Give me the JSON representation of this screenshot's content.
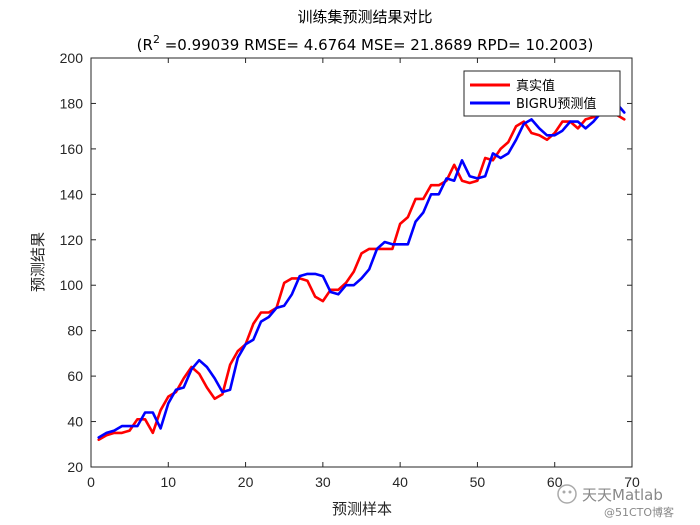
{
  "chart_data": {
    "type": "line",
    "title": "训练集预测结果对比",
    "subtitle_prefix": "(R",
    "subtitle_sup": "2",
    "subtitle_rest": " =0.99039 RMSE= 4.6764 MSE= 21.8689 RPD= 10.2003)",
    "xlabel": "预测样本",
    "ylabel": "预测结果",
    "xlim": [
      0,
      70
    ],
    "ylim": [
      20,
      200
    ],
    "xticks": [
      0,
      10,
      20,
      30,
      40,
      50,
      60,
      70
    ],
    "yticks": [
      20,
      40,
      60,
      80,
      100,
      120,
      140,
      160,
      180,
      200
    ],
    "grid": false,
    "legend_position": "top-right",
    "x": [
      1,
      2,
      3,
      4,
      5,
      6,
      7,
      8,
      9,
      10,
      11,
      12,
      13,
      14,
      15,
      16,
      17,
      18,
      19,
      20,
      21,
      22,
      23,
      24,
      25,
      26,
      27,
      28,
      29,
      30,
      31,
      32,
      33,
      34,
      35,
      36,
      37,
      38,
      39,
      40,
      41,
      42,
      43,
      44,
      45,
      46,
      47,
      48,
      49,
      50,
      51,
      52,
      53,
      54,
      55,
      56,
      57,
      58,
      59,
      60,
      61,
      62,
      63,
      64,
      65,
      66,
      67,
      68,
      69
    ],
    "series": [
      {
        "name": "真实值",
        "color": "#ff0000",
        "values": [
          32,
          34,
          35,
          35,
          36,
          41,
          41,
          35,
          45,
          51,
          53,
          59,
          64,
          61,
          55,
          50,
          52,
          65,
          71,
          74,
          83,
          88,
          88,
          90,
          101,
          103,
          103,
          102,
          95,
          93,
          98,
          98,
          101,
          106,
          114,
          116,
          116,
          116,
          116,
          127,
          130,
          138,
          138,
          144,
          144,
          146,
          153,
          146,
          145,
          146,
          156,
          155,
          160,
          163,
          170,
          172,
          167,
          166,
          164,
          167,
          172,
          172,
          169,
          173,
          174,
          175,
          175,
          175,
          173
        ],
        "id": "true"
      },
      {
        "name": "BIGRU预测值",
        "color": "#0000ff",
        "values": [
          33,
          35,
          36,
          38,
          38,
          38,
          44,
          44,
          37,
          48,
          54,
          55,
          63,
          67,
          64,
          59,
          53,
          54,
          68,
          74,
          76,
          84,
          86,
          90,
          91,
          96,
          104,
          105,
          105,
          104,
          97,
          96,
          100,
          100,
          103,
          107,
          116,
          119,
          118,
          118,
          118,
          128,
          132,
          140,
          140,
          147,
          146,
          155,
          148,
          147,
          148,
          158,
          156,
          158,
          164,
          171,
          173,
          169,
          166,
          166,
          168,
          172,
          172,
          169,
          172,
          176,
          176,
          180,
          176
        ],
        "id": "pred"
      }
    ]
  },
  "watermark": {
    "text": "天天Matlab",
    "subtext": "@51CTO博客"
  }
}
